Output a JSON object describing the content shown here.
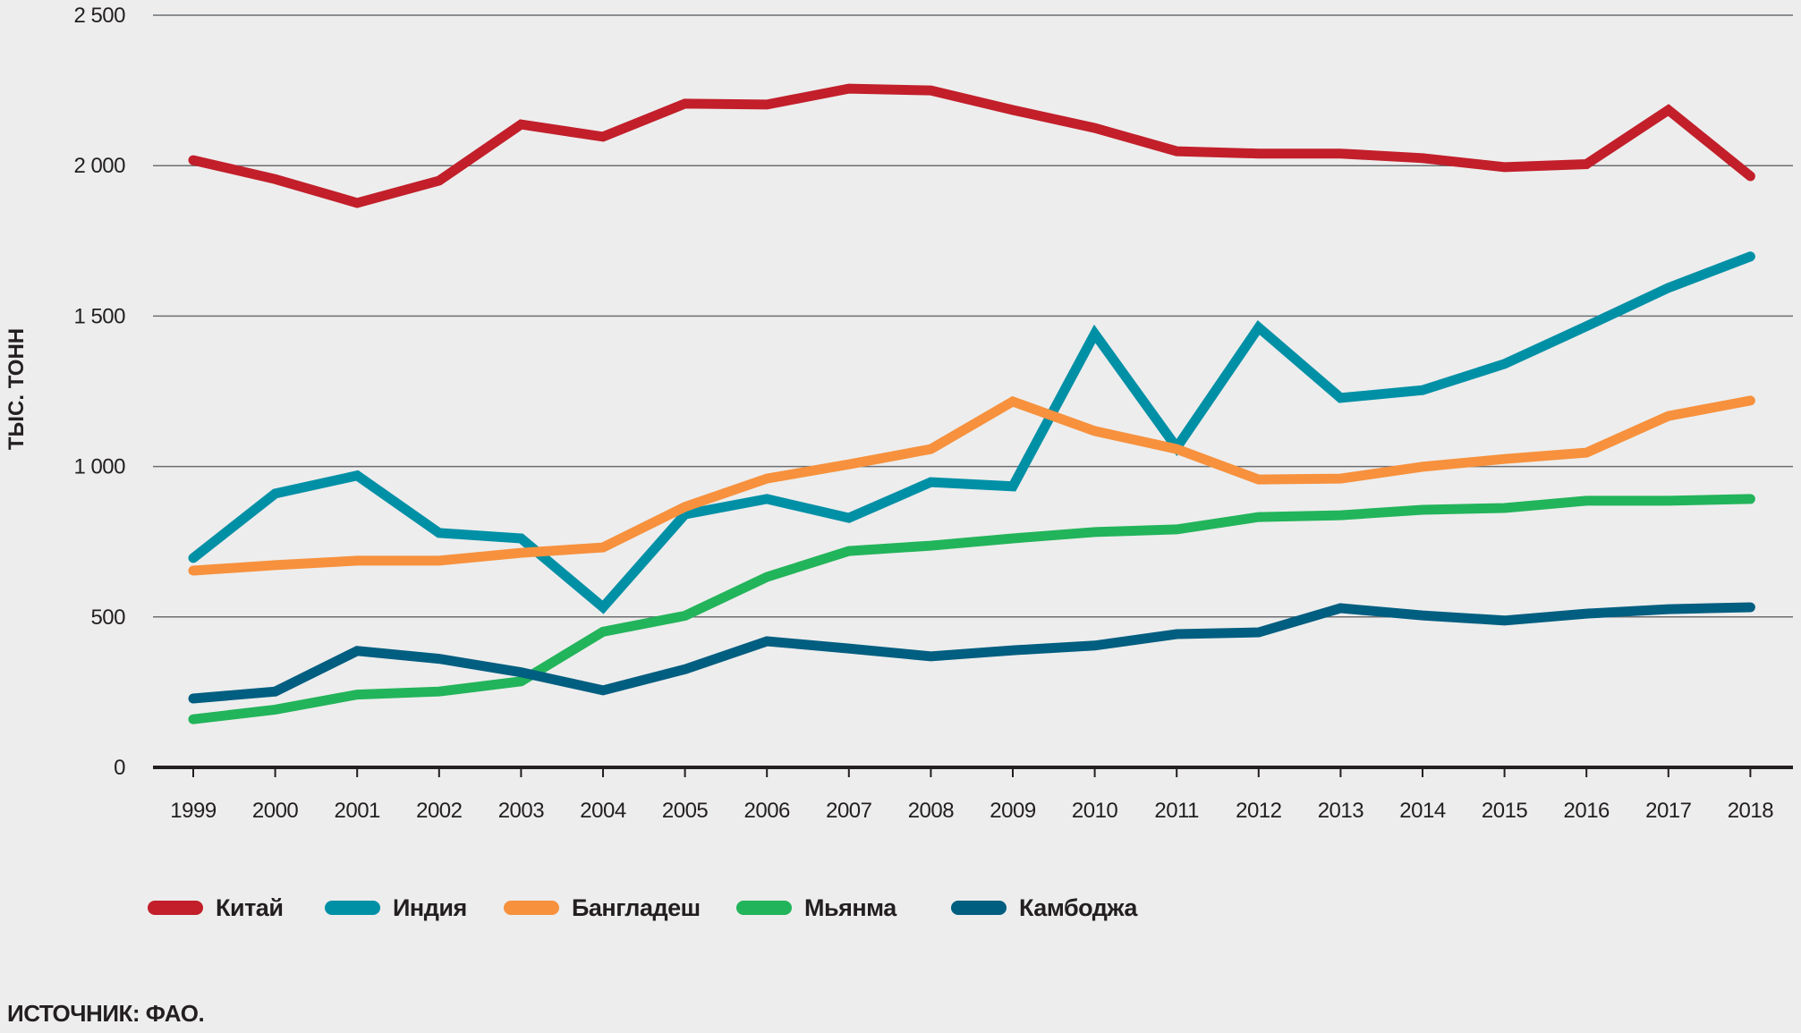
{
  "chart_data": {
    "type": "line",
    "title": "",
    "xlabel": "",
    "ylabel": "ТЫС. ТОНН",
    "ylim": [
      0,
      2500
    ],
    "yticks": [
      0,
      500,
      1000,
      1500,
      2000,
      2500
    ],
    "ytick_labels": [
      "0",
      "500",
      "1 000",
      "1 500",
      "2 000",
      "2 500"
    ],
    "grid": true,
    "legend_position": "bottom-left",
    "x": [
      "1999",
      "2000",
      "2001",
      "2002",
      "2003",
      "2004",
      "2005",
      "2006",
      "2007",
      "2008",
      "2009",
      "2010",
      "2011",
      "2012",
      "2013",
      "2014",
      "2015",
      "2016",
      "2017",
      "2018"
    ],
    "series": [
      {
        "name": "Китай",
        "color": "#c21f2a",
        "values": [
          2018,
          1955,
          1876,
          1950,
          2137,
          2096,
          2206,
          2203,
          2256,
          2250,
          2185,
          2125,
          2048,
          2040,
          2040,
          2025,
          1995,
          2005,
          2185,
          1965
        ]
      },
      {
        "name": "Индия",
        "color": "#0090a6",
        "values": [
          696,
          910,
          970,
          779,
          761,
          532,
          841,
          892,
          829,
          948,
          934,
          1441,
          1063,
          1462,
          1228,
          1254,
          1341,
          1466,
          1594,
          1698
        ]
      },
      {
        "name": "Бангладеш",
        "color": "#f7913d",
        "values": [
          654,
          672,
          687,
          687,
          713,
          731,
          866,
          960,
          1007,
          1058,
          1216,
          1118,
          1058,
          957,
          960,
          999,
          1025,
          1046,
          1168,
          1219
        ]
      },
      {
        "name": "Мьянма",
        "color": "#22b45a",
        "values": [
          160,
          192,
          242,
          252,
          286,
          451,
          504,
          633,
          719,
          737,
          761,
          782,
          791,
          832,
          838,
          856,
          862,
          886,
          886,
          892
        ]
      },
      {
        "name": "Камбоджа",
        "color": "#005e80",
        "values": [
          229,
          252,
          387,
          361,
          316,
          256,
          326,
          419,
          395,
          369,
          389,
          405,
          443,
          449,
          529,
          505,
          488,
          511,
          526,
          532
        ]
      }
    ]
  },
  "source": "ИСТОЧНИК: ФАО."
}
